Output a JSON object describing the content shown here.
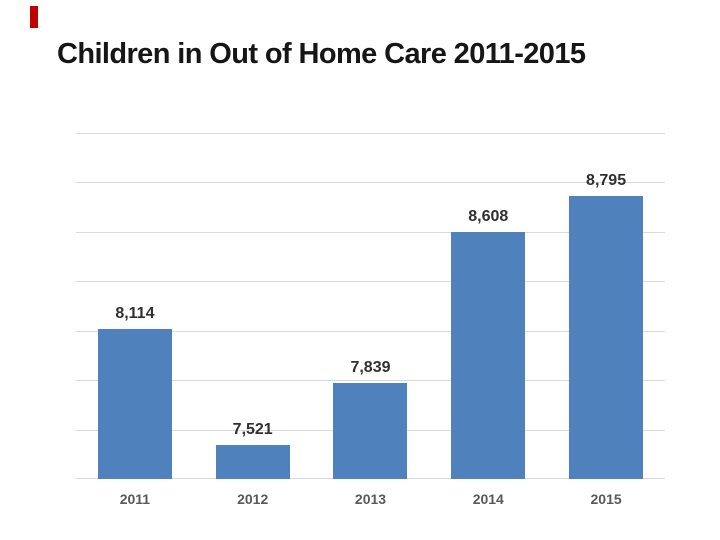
{
  "slide": {
    "title": "Children in Out of Home Care 2011-2015",
    "accent_color": "#C00000",
    "background_color": "#FFFFFF",
    "title_color": "#161616"
  },
  "chart_data": {
    "type": "bar",
    "title": "Children in Out of Home Care 2011-2015",
    "categories": [
      "2011",
      "2012",
      "2013",
      "2014",
      "2015"
    ],
    "values": [
      8114,
      7521,
      7839,
      8608,
      8795
    ],
    "value_labels": [
      "8,114",
      "7,521",
      "7,839",
      "8,608",
      "8,795"
    ],
    "xlabel": "",
    "ylabel": "",
    "ylim": [
      7346,
      9117
    ],
    "gridline_count": 8,
    "grid": true,
    "legend": false,
    "y_axis_labels_visible": false,
    "bar_color": "#4F81BD",
    "gridline_color": "#D9D9D9",
    "value_label_color": "#303030",
    "category_label_color": "#595959"
  }
}
